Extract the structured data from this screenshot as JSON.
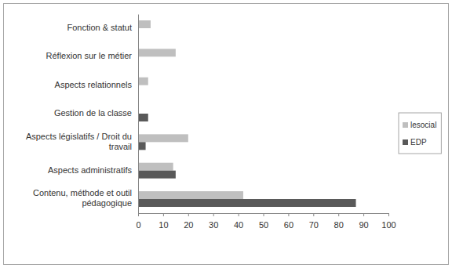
{
  "chart_data": {
    "type": "bar",
    "orientation": "horizontal",
    "categories": [
      "Fonction & statut",
      "Réflexion sur le métier",
      "Aspects relationnels",
      "Gestion de la classe",
      "Aspects législatifs / Droit du travail",
      "Aspects administratifs",
      "Contenu, méthode et outil pédagogique"
    ],
    "series": [
      {
        "name": "lesocial",
        "color": "#bfbfbf",
        "values": [
          5,
          15,
          4,
          0,
          20,
          14,
          42
        ]
      },
      {
        "name": "EDP",
        "color": "#595959",
        "values": [
          0,
          0,
          0,
          4,
          3,
          15,
          87
        ]
      }
    ],
    "xlim": [
      0,
      100
    ],
    "xticks": [
      0,
      10,
      20,
      30,
      40,
      50,
      60,
      70,
      80,
      90,
      100
    ],
    "grid": false,
    "legend": "right"
  }
}
